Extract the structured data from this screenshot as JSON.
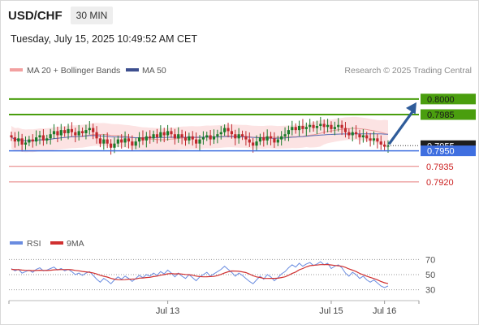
{
  "header": {
    "symbol": "USD/CHF",
    "timeframe": "30 MIN"
  },
  "datetime": "Tuesday, July 15, 2025 10:49:52 AM CET",
  "legend": {
    "ma_bb": "MA 20 + Bollinger Bands",
    "ma50": "MA 50",
    "credit": "Research © 2025 Trading Central"
  },
  "rsi_legend": {
    "rsi": "RSI",
    "ma": "9MA"
  },
  "colors": {
    "bb_band": "#fbd9d9",
    "ma20": "#e99a9a",
    "ma50": "#5a6fb5",
    "up": "#1a7a2a",
    "down": "#c0282d",
    "green_level": "#4a9e0e",
    "blue_level": "#3f6fe0",
    "red_level": "#e57a7a",
    "arrow": "#2f5c9a",
    "rsi": "#6a8ce0",
    "rsi_ma": "#d03030"
  },
  "chart_data": [
    {
      "type": "candlestick",
      "ylim": [
        0.7905,
        0.8025
      ],
      "current_price": "0.7955",
      "levels": [
        {
          "value": 0.8,
          "label": "0.8000",
          "style": "green"
        },
        {
          "value": 0.7985,
          "label": "0.7985",
          "style": "green"
        },
        {
          "value": 0.795,
          "label": "0.7950",
          "style": "blue"
        },
        {
          "value": 0.7935,
          "label": "0.7935",
          "style": "red"
        },
        {
          "value": 0.792,
          "label": "0.7920",
          "style": "red"
        }
      ],
      "forecast_arrow": {
        "from": 0.7955,
        "to": 0.8
      },
      "x_ticks": [
        "Jul 13",
        "Jul 15",
        "Jul 16"
      ],
      "closes": [
        0.7963,
        0.7959,
        0.7962,
        0.7956,
        0.7958,
        0.7961,
        0.7959,
        0.7963,
        0.7965,
        0.796,
        0.7962,
        0.7966,
        0.7969,
        0.7965,
        0.797,
        0.7967,
        0.7971,
        0.7968,
        0.7965,
        0.7969,
        0.7967,
        0.797,
        0.7972,
        0.7968,
        0.7962,
        0.7957,
        0.7961,
        0.7957,
        0.7953,
        0.7957,
        0.7961,
        0.7958,
        0.7962,
        0.7959,
        0.7955,
        0.7959,
        0.7963,
        0.796,
        0.7964,
        0.7962,
        0.7966,
        0.7963,
        0.7968,
        0.7965,
        0.7969,
        0.7966,
        0.7962,
        0.7966,
        0.7963,
        0.796,
        0.7964,
        0.7961,
        0.7957,
        0.7961,
        0.7963,
        0.7965,
        0.7961,
        0.7964,
        0.7966,
        0.7968,
        0.7972,
        0.7969,
        0.7966,
        0.7962,
        0.7966,
        0.7964,
        0.7961,
        0.7958,
        0.7955,
        0.7959,
        0.7963,
        0.796,
        0.7964,
        0.7962,
        0.7958,
        0.7961,
        0.7964,
        0.7966,
        0.797,
        0.7973,
        0.797,
        0.7974,
        0.7971,
        0.7973,
        0.7975,
        0.7972,
        0.7974,
        0.7976,
        0.7973,
        0.7975,
        0.7971,
        0.7973,
        0.7975,
        0.7972,
        0.7968,
        0.7965,
        0.7968,
        0.7966,
        0.7963,
        0.7965,
        0.7962,
        0.796,
        0.7962,
        0.7959,
        0.7956,
        0.7954,
        0.7955
      ]
    },
    {
      "type": "line",
      "title": "RSI",
      "ylim": [
        20,
        80
      ],
      "y_ticks": [
        70,
        50,
        30
      ],
      "series": [
        {
          "name": "RSI",
          "values": [
            58,
            55,
            57,
            52,
            54,
            56,
            53,
            57,
            59,
            55,
            56,
            58,
            60,
            56,
            58,
            55,
            57,
            54,
            50,
            52,
            49,
            52,
            54,
            49,
            44,
            40,
            45,
            42,
            38,
            43,
            47,
            44,
            48,
            45,
            41,
            45,
            49,
            46,
            50,
            48,
            52,
            49,
            54,
            51,
            56,
            52,
            47,
            52,
            48,
            45,
            50,
            46,
            42,
            47,
            50,
            53,
            48,
            51,
            54,
            57,
            61,
            57,
            53,
            48,
            52,
            49,
            45,
            41,
            38,
            43,
            48,
            44,
            50,
            47,
            42,
            46,
            51,
            54,
            59,
            63,
            60,
            65,
            61,
            64,
            66,
            62,
            64,
            67,
            63,
            65,
            58,
            61,
            63,
            59,
            52,
            48,
            53,
            50,
            45,
            48,
            43,
            40,
            43,
            39,
            35,
            33,
            35
          ]
        },
        {
          "name": "9MA",
          "values": [
            57,
            56.5,
            56.5,
            56,
            55.7,
            55.5,
            55.3,
            55.5,
            55.8,
            55.6,
            55.5,
            55.8,
            56.3,
            56.5,
            56.6,
            56.6,
            56.7,
            56.4,
            55.6,
            55,
            54.2,
            53.6,
            53.1,
            52.2,
            50.9,
            49.1,
            47.9,
            46.8,
            45.1,
            44,
            43.4,
            43.2,
            43.4,
            44,
            44.1,
            44.3,
            45.4,
            45.6,
            46.1,
            46.5,
            47.4,
            48.1,
            49.3,
            50,
            51.1,
            51.4,
            51,
            51.2,
            50.8,
            50.2,
            49.9,
            49.2,
            48.1,
            47.4,
            47.1,
            47.2,
            47.4,
            47.6,
            48.7,
            50.3,
            52.3,
            53.8,
            54.8,
            54.7,
            54.4,
            53.6,
            52.7,
            50.8,
            48.6,
            47,
            46.2,
            45.1,
            45,
            45.1,
            45.1,
            45.3,
            46.1,
            47.1,
            49.1,
            51.5,
            53.4,
            56.3,
            58,
            60.2,
            61.8,
            62.3,
            62.6,
            63.2,
            63.2,
            63.3,
            62.8,
            62.1,
            61.7,
            61,
            59.5,
            57.5,
            55.9,
            54.1,
            51.6,
            49.8,
            48,
            46.4,
            44.9,
            43.1,
            41,
            39.3,
            38.1
          ]
        }
      ]
    }
  ]
}
